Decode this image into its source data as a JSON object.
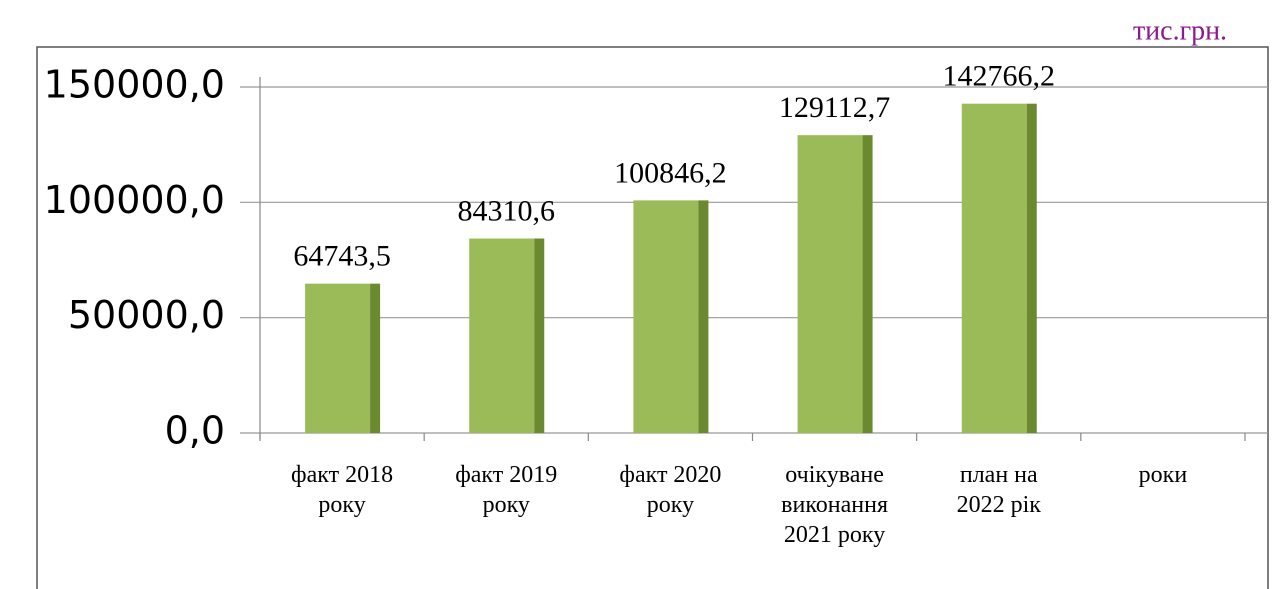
{
  "chart_data": {
    "type": "bar",
    "unit_label": "тис.грн.",
    "categories": [
      "факт 2018\nроку",
      "факт  2019\nроку",
      "факт 2020\nроку",
      "очікуване\nвиконання\n2021 року",
      "план на\n2022 рік",
      "роки"
    ],
    "values": [
      64743.5,
      84310.6,
      100846.2,
      129112.7,
      142766.2,
      null
    ],
    "value_labels": [
      "64743,5",
      "84310,6",
      "100846,2",
      "129112,7",
      "142766,2",
      null
    ],
    "color": "#9bbb59",
    "side_color": "#6b8a2f",
    "ylim": [
      0,
      150000
    ],
    "yticks": [
      {
        "value": 0,
        "label": "0,0"
      },
      {
        "value": 50000,
        "label": "50000,0"
      },
      {
        "value": 100000,
        "label": "100000,0"
      },
      {
        "value": 150000,
        "label": "150000,0"
      }
    ],
    "grid": true
  }
}
